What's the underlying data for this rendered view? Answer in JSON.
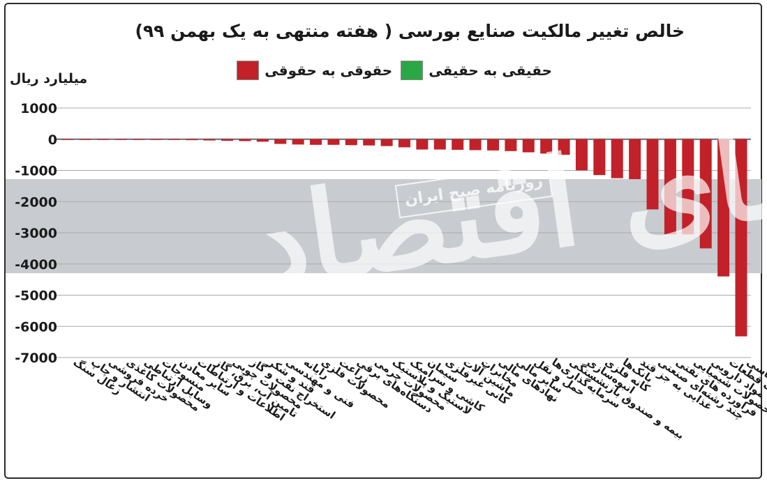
{
  "chart_data": {
    "type": "bar",
    "title": "خالص تغییر مالکیت صنایع بورسی ( هفته منتهی به یک بهمن ۹۹)",
    "ylabel": "میلیارد ریال",
    "ylim": [
      -7000,
      1000
    ],
    "yticks": [
      1000,
      0,
      -1000,
      -2000,
      -3000,
      -4000,
      -5000,
      -6000,
      -7000
    ],
    "ytick_labels": [
      "1000",
      "0",
      "-1000",
      "-2000",
      "-3000",
      "-4000",
      "-5000",
      "-6000",
      "-7000"
    ],
    "grid": true,
    "legend_position": "top",
    "series_colors": [
      "#c22129",
      "#2aa845"
    ],
    "legend": [
      {
        "label": "حقوقی به حقوقی",
        "color": "#c22129"
      },
      {
        "label": "حقیقی به حقیقی",
        "color": "#2aa845"
      }
    ],
    "categories": [
      "زغال سنگ",
      "انتشار و چاپ",
      "خرده فروشی",
      "محصولات کاغذی",
      "وسایل ارتباطی",
      "منسوجات",
      "سایر معادن",
      "اطلاعات و ارتباطات",
      "تامین آب، برق، گاز",
      "محصولات چوبی",
      "استخراج نفت و گاز",
      "قند و شکر",
      "فنی و مهندسی",
      "رایانه",
      "محصولات فلزی",
      "زراعت",
      "دستگاه‌های برقی",
      "محصولات چرمی",
      "لاستیک و پلاستیک",
      "کاشی و سرامیک",
      "سیمان",
      "کانی غیرفلزی",
      "ماشین آلات",
      "مخابرات",
      "نهادهای مالی",
      "سایر مالی",
      "حمل و نقل",
      "سرمایه‌گذاری‌ها",
      "بیمه و صندوق بازنشستگی",
      "انبوه‌سازی",
      "کانه فلزی",
      "بانک‌ها",
      "غذایی به جز قند",
      "چند رشته‌ای صنعتی",
      "فراورده های نفتی",
      "محصولات شیمیایی",
      "مواد دارویی",
      "خودرو و ساخت قطعات",
      "فلزات اساسی"
    ],
    "series": [
      {
        "name": "حقوقی به حقوقی",
        "values": [
          -10,
          -10,
          -10,
          -10,
          -10,
          -10,
          -10,
          -30,
          -40,
          -50,
          -60,
          -80,
          -150,
          -170,
          -180,
          -180,
          -190,
          -200,
          -220,
          -260,
          -330,
          -330,
          -340,
          -350,
          -360,
          -380,
          -420,
          -460,
          -500,
          -1000,
          -1150,
          -1250,
          -1280,
          -2250,
          -3050,
          -3050,
          -3500,
          -4400,
          -6320
        ]
      }
    ]
  },
  "watermark": {
    "brand": "دنیای اقتصاد",
    "newspaper": "روزنامه صبح ایران"
  }
}
